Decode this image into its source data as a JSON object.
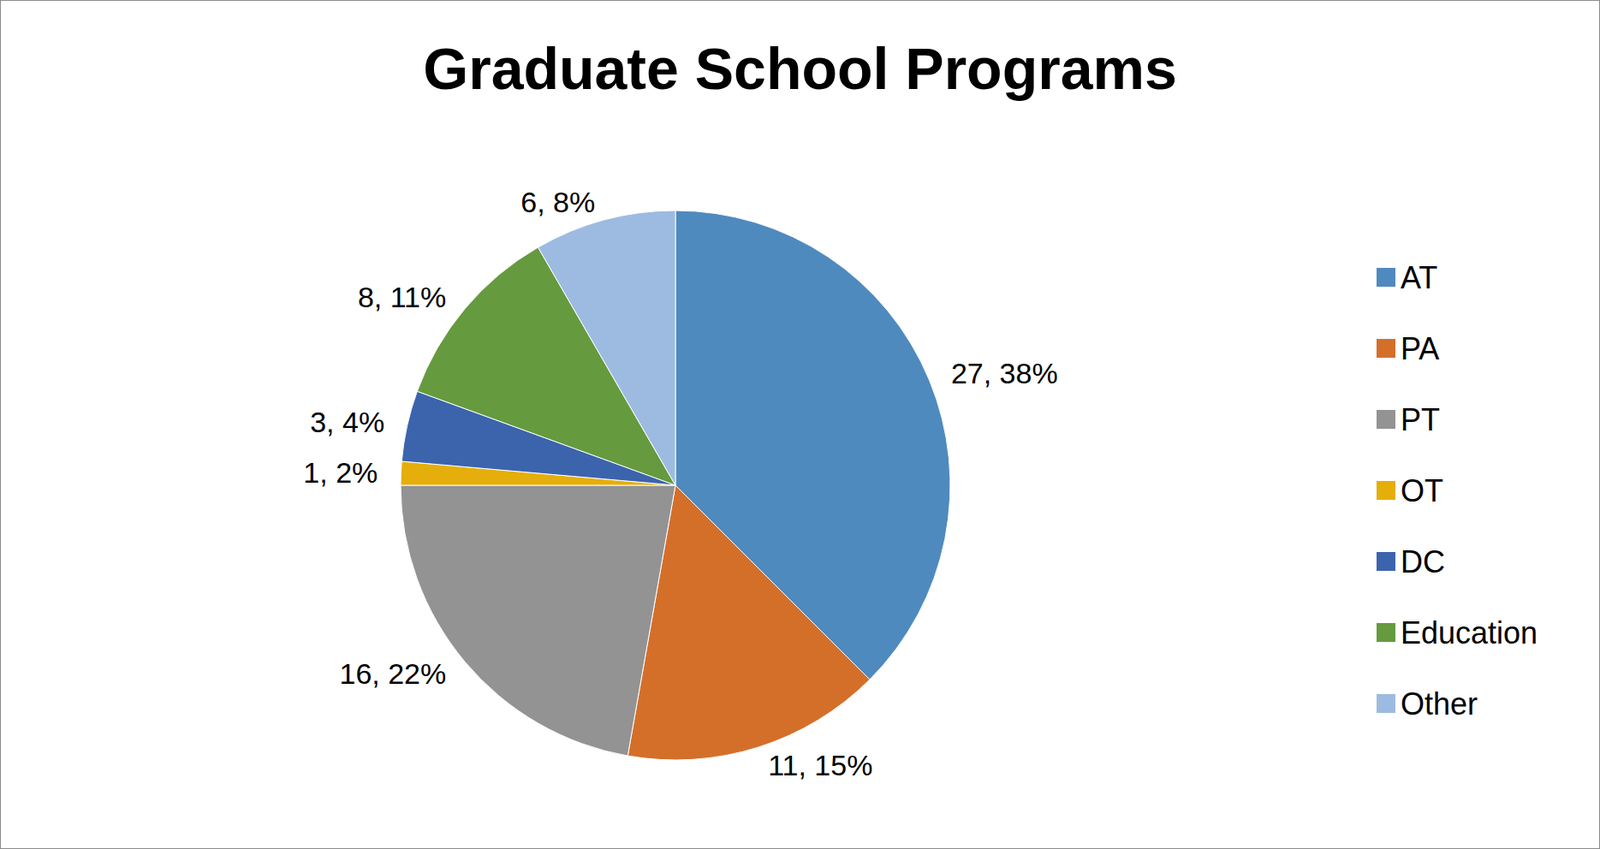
{
  "chart_data": {
    "type": "pie",
    "title": "Graduate School Programs",
    "categories": [
      "AT",
      "PA",
      "PT",
      "OT",
      "DC",
      "Education",
      "Other"
    ],
    "values": [
      27,
      11,
      16,
      1,
      3,
      8,
      6
    ],
    "value_labels": [
      "27, 38%",
      "11, 15%",
      "16, 22%",
      "1, 2%",
      "3, 4%",
      "8, 11%",
      "6, 8%"
    ],
    "colors": [
      "#4f8abe",
      "#d46f2a",
      "#939393",
      "#e5ae0a",
      "#3b64ad",
      "#659a3e",
      "#9dbbe1"
    ],
    "data_labels": true,
    "legend": "right"
  }
}
